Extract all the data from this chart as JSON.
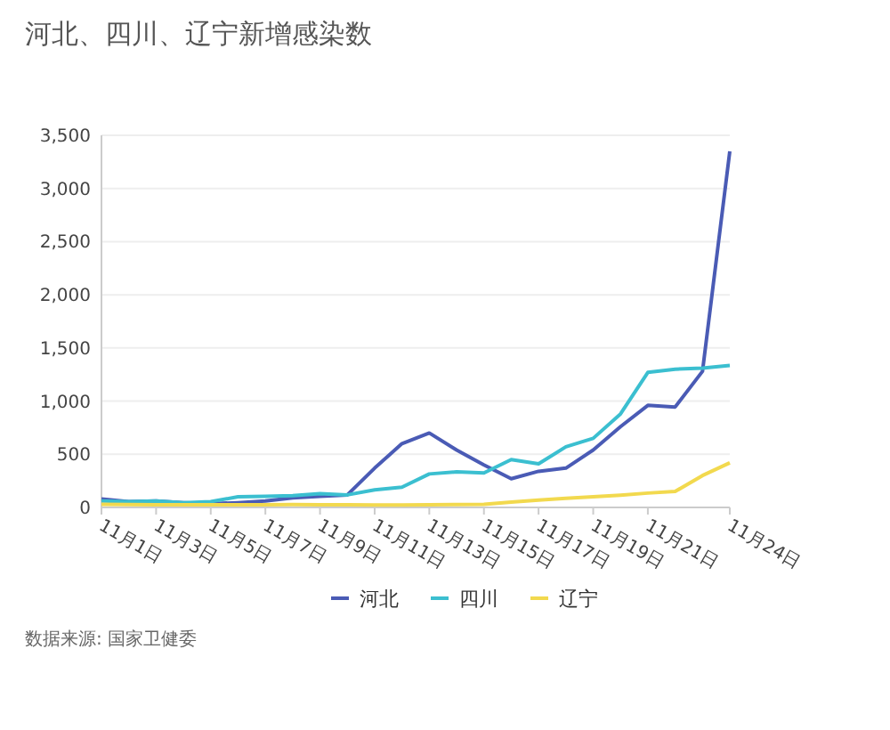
{
  "chart_data": {
    "type": "line",
    "title": "河北、四川、辽宁新增感染数",
    "categories": [
      "11月1日",
      null,
      "11月3日",
      null,
      "11月5日",
      null,
      "11月7日",
      null,
      "11月9日",
      null,
      "11月11日",
      null,
      "11月13日",
      null,
      "11月15日",
      null,
      "11月17日",
      null,
      "11月19日",
      null,
      "11月21日",
      null,
      null,
      "11月24日"
    ],
    "series": [
      {
        "name": "河北",
        "color": "#4a5bb5",
        "values": [
          80,
          55,
          60,
          45,
          35,
          45,
          60,
          90,
          105,
          118,
          370,
          600,
          700,
          540,
          400,
          270,
          340,
          370,
          540,
          760,
          960,
          945,
          1280,
          3350
        ]
      },
      {
        "name": "四川",
        "color": "#3bbfd0",
        "values": [
          60,
          55,
          60,
          45,
          55,
          100,
          105,
          110,
          130,
          118,
          165,
          190,
          315,
          335,
          325,
          450,
          410,
          570,
          650,
          880,
          1270,
          1300,
          1310,
          1335
        ]
      },
      {
        "name": "辽宁",
        "color": "#f2d94e",
        "values": [
          30,
          28,
          26,
          25,
          25,
          25,
          26,
          27,
          25,
          25,
          22,
          22,
          25,
          28,
          30,
          50,
          70,
          85,
          100,
          115,
          135,
          150,
          300,
          420
        ]
      }
    ],
    "ylim": [
      0,
      3500
    ],
    "yticks": [
      0,
      500,
      {
        "value": 1000,
        "label": "1,000"
      },
      {
        "value": 1500,
        "label": "1,500"
      },
      {
        "value": 2000,
        "label": "2,000"
      },
      {
        "value": 2500,
        "label": "2,500"
      },
      {
        "value": 3000,
        "label": "3,000"
      },
      {
        "value": 3500,
        "label": "3,500"
      }
    ],
    "grid": "y",
    "legend": "bottom",
    "marker": "none",
    "line_style": "solid",
    "annotations": [
      "数据来源: 国家卫健委"
    ]
  }
}
